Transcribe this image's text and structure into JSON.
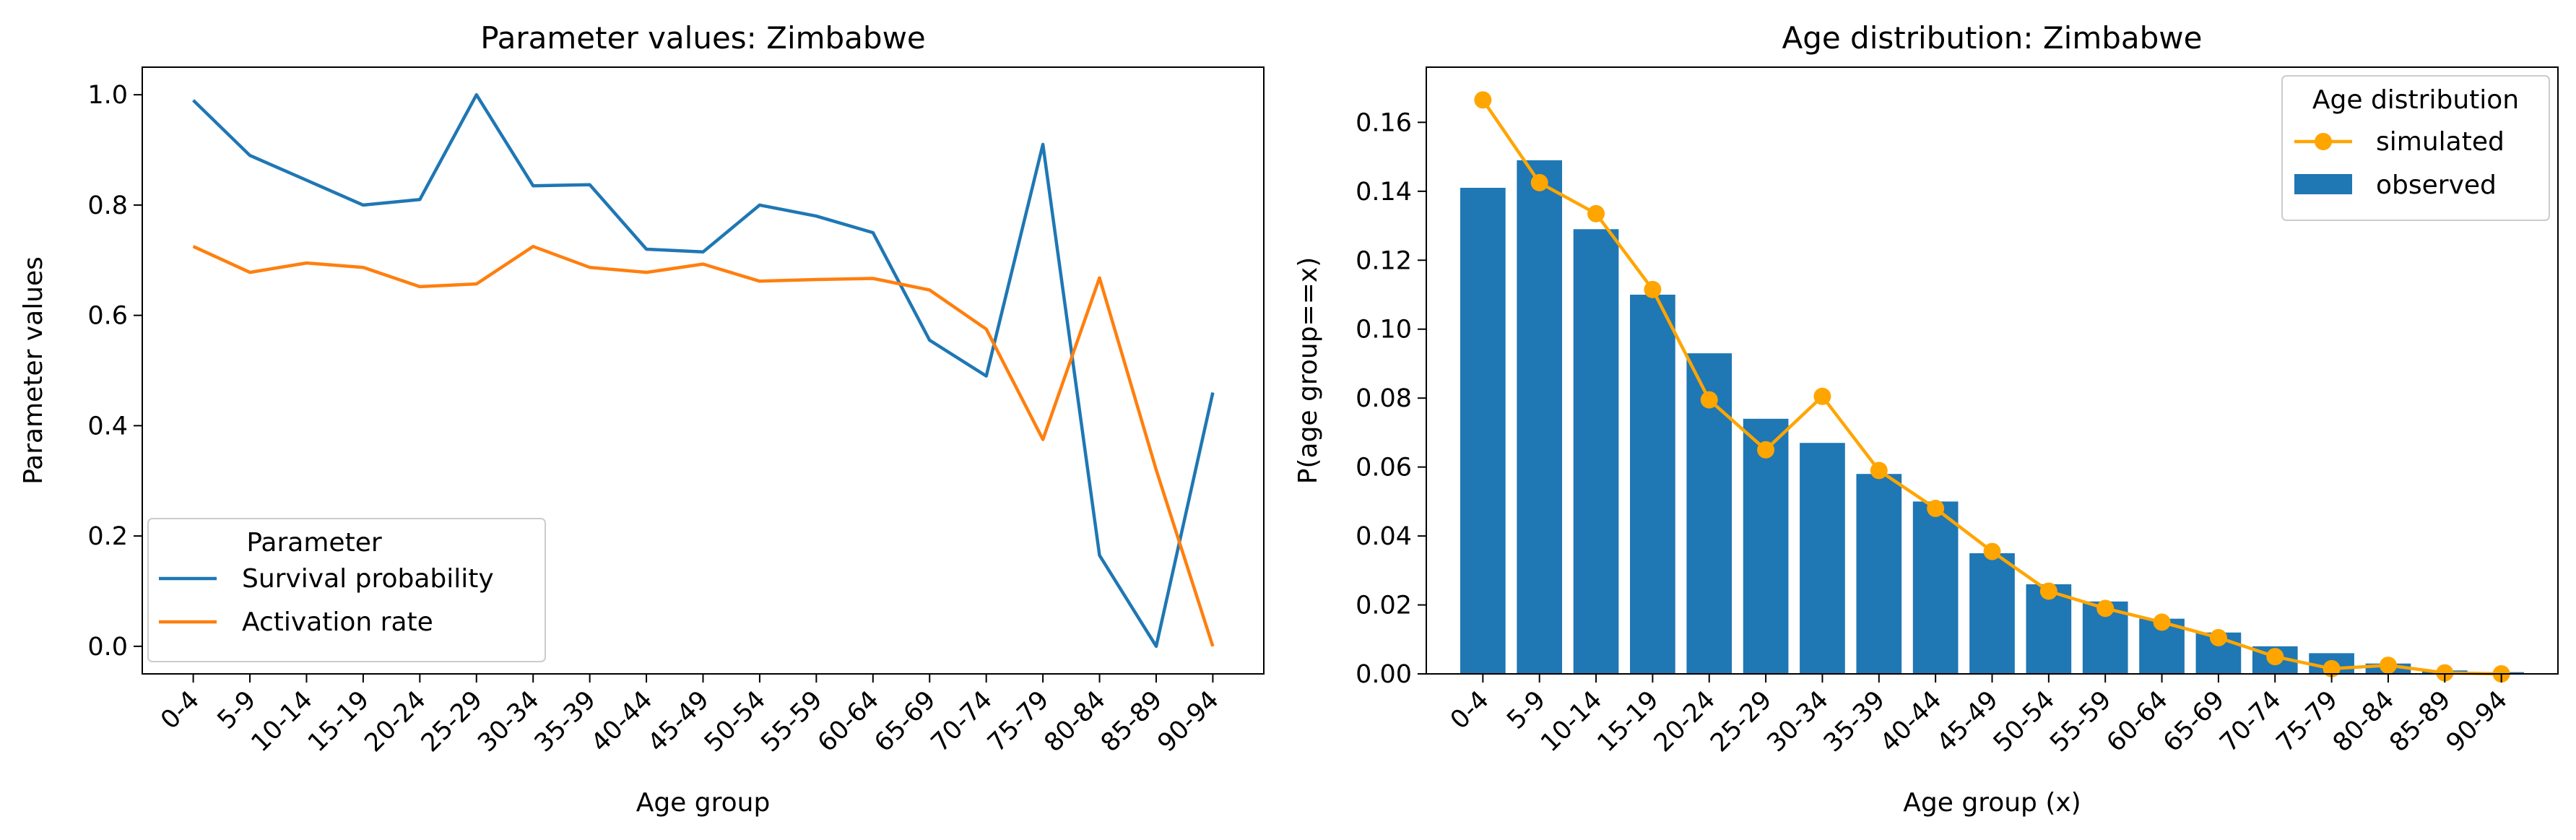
{
  "chart_data": [
    {
      "type": "line",
      "title": "Parameter values: Zimbabwe",
      "xlabel": "Age group",
      "ylabel": "Parameter values",
      "categories": [
        "0-4",
        "5-9",
        "10-14",
        "15-19",
        "20-24",
        "25-29",
        "30-34",
        "35-39",
        "40-44",
        "45-49",
        "50-54",
        "55-59",
        "60-64",
        "65-69",
        "70-74",
        "75-79",
        "80-84",
        "85-89",
        "90-94"
      ],
      "ylim": [
        -0.05,
        1.05
      ],
      "yticks": [
        "0.0",
        "0.2",
        "0.4",
        "0.6",
        "0.8",
        "1.0"
      ],
      "legend": {
        "title": "Parameter",
        "placement": "lower left"
      },
      "series": [
        {
          "name": "Survival probability",
          "color": "#1f77b4",
          "values": [
            0.99,
            0.89,
            0.845,
            0.8,
            0.81,
            1.0,
            0.835,
            0.837,
            0.72,
            0.715,
            0.8,
            0.78,
            0.75,
            0.555,
            0.49,
            0.91,
            0.165,
            0.0,
            0.46
          ]
        },
        {
          "name": "Activation rate",
          "color": "#ff7f0e",
          "values": [
            0.725,
            0.678,
            0.695,
            0.687,
            0.652,
            0.657,
            0.725,
            0.687,
            0.678,
            0.693,
            0.662,
            0.665,
            0.667,
            0.646,
            0.575,
            0.375,
            0.668,
            0.32,
            0.0
          ]
        }
      ]
    },
    {
      "type": "bar",
      "title": "Age distribution: Zimbabwe",
      "xlabel": "Age group (x)",
      "ylabel": "P(age group==x)",
      "categories": [
        "0-4",
        "5-9",
        "10-14",
        "15-19",
        "20-24",
        "25-29",
        "30-34",
        "35-39",
        "40-44",
        "45-49",
        "50-54",
        "55-59",
        "60-64",
        "65-69",
        "70-74",
        "75-79",
        "80-84",
        "85-89",
        "90-94"
      ],
      "ylim": [
        0,
        0.176
      ],
      "yticks": [
        "0.00",
        "0.02",
        "0.04",
        "0.06",
        "0.08",
        "0.10",
        "0.12",
        "0.14",
        "0.16"
      ],
      "legend": {
        "title": "Age distribution",
        "placement": "upper right"
      },
      "series": [
        {
          "name": "observed",
          "kind": "bar",
          "color": "#1f77b4",
          "values": [
            0.141,
            0.149,
            0.129,
            0.11,
            0.093,
            0.074,
            0.067,
            0.058,
            0.05,
            0.035,
            0.026,
            0.021,
            0.016,
            0.012,
            0.008,
            0.006,
            0.003,
            0.001,
            0.0005
          ]
        },
        {
          "name": "simulated",
          "kind": "line",
          "color": "#ffa500",
          "values": [
            0.1665,
            0.1425,
            0.1335,
            0.1115,
            0.0795,
            0.065,
            0.0805,
            0.059,
            0.048,
            0.0355,
            0.024,
            0.019,
            0.015,
            0.0105,
            0.005,
            0.0015,
            0.0025,
            0.0003,
            0.0
          ]
        }
      ]
    }
  ]
}
